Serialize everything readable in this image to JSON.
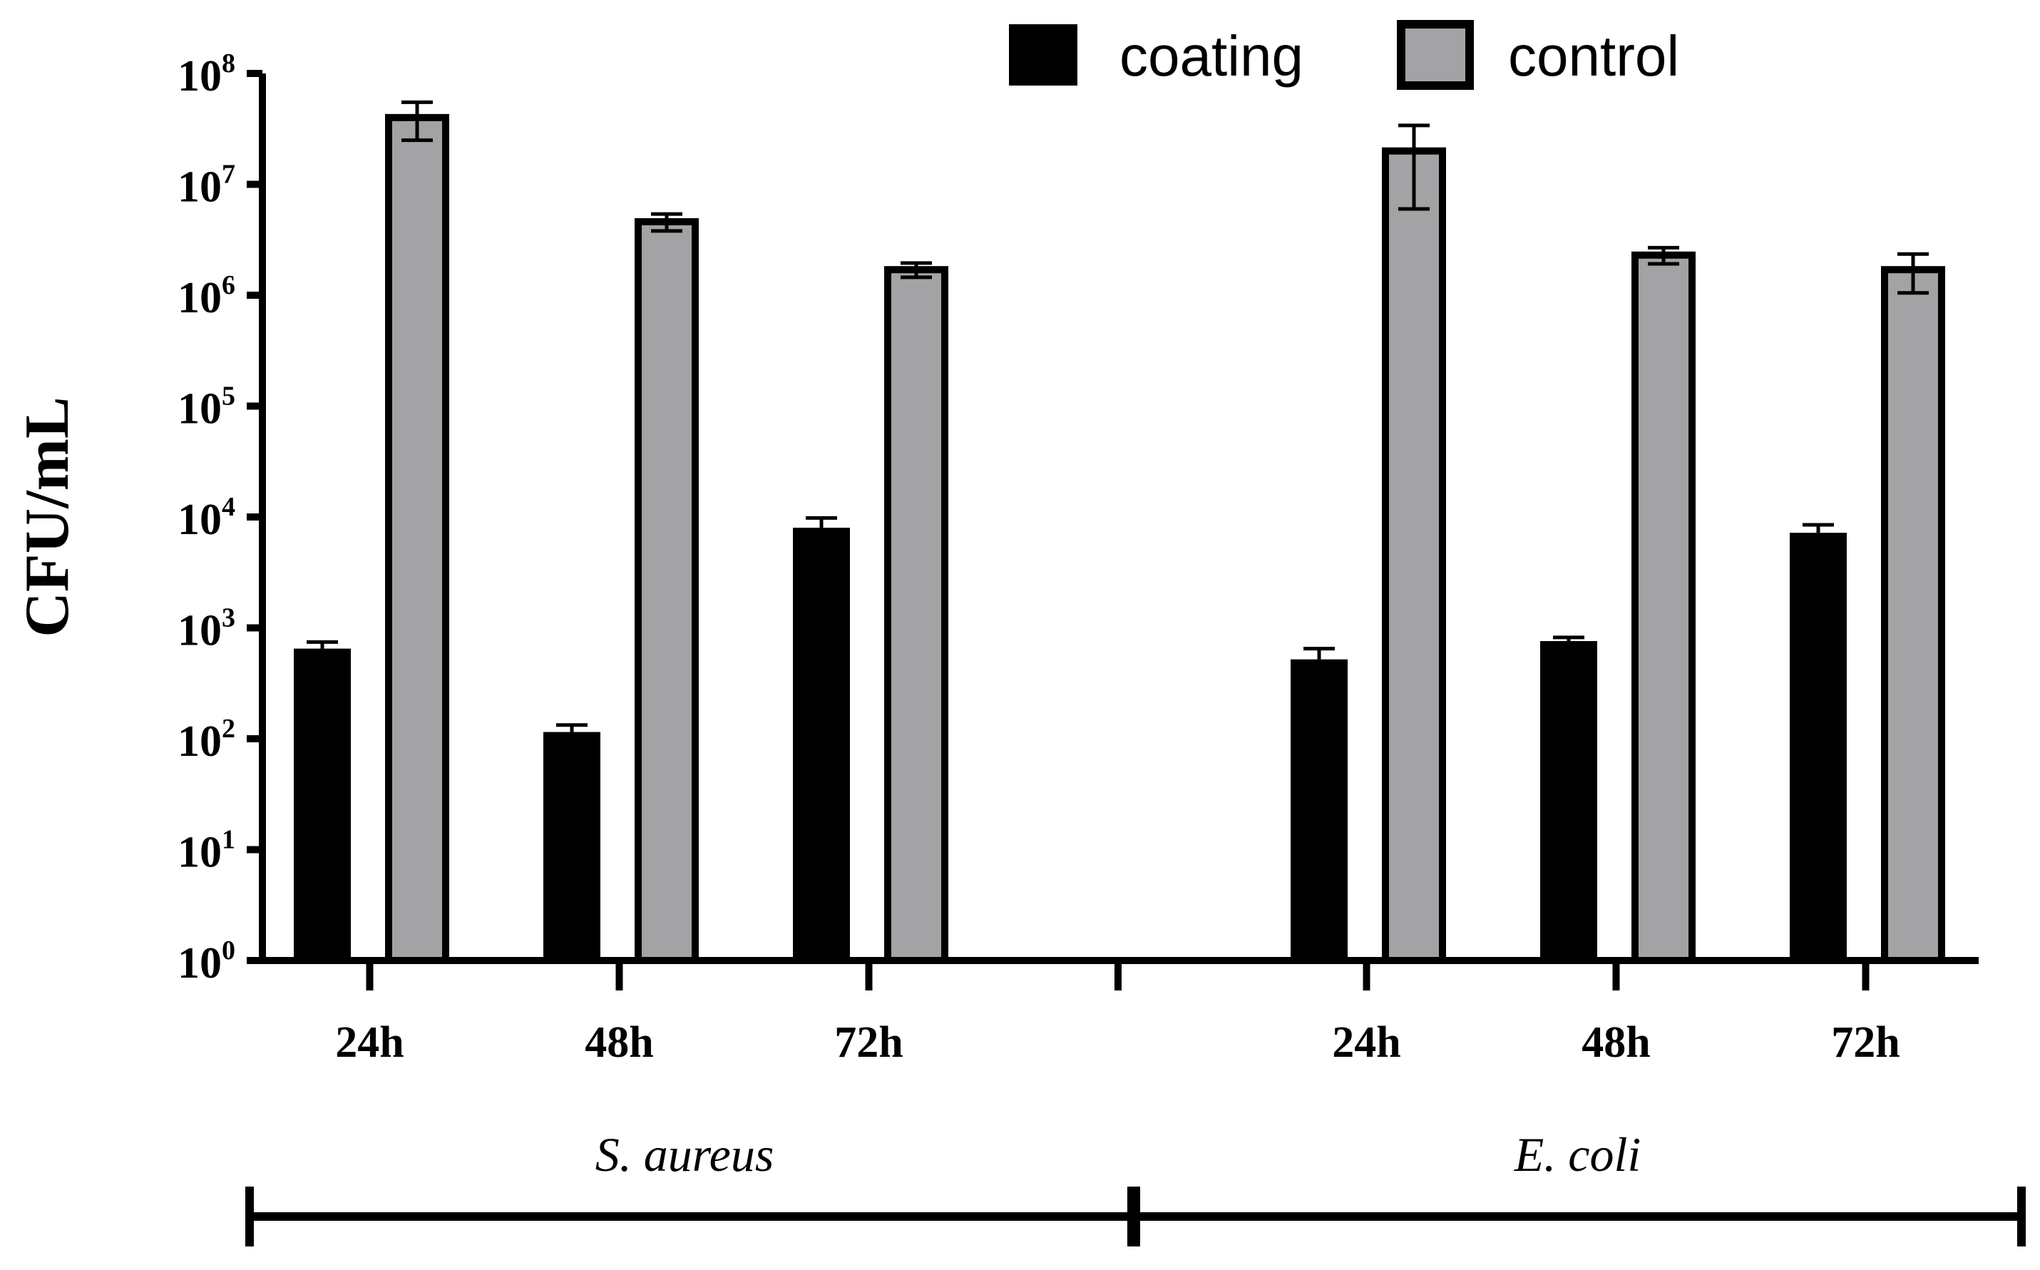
{
  "chart_data": {
    "type": "bar",
    "yscale": "log",
    "ylabel": "CFU/mL",
    "ylim": [
      1,
      100000000
    ],
    "yticks": [
      {
        "value": 1,
        "base": "10",
        "exp": "0"
      },
      {
        "value": 10,
        "base": "10",
        "exp": "1"
      },
      {
        "value": 100,
        "base": "10",
        "exp": "2"
      },
      {
        "value": 1000,
        "base": "10",
        "exp": "3"
      },
      {
        "value": 10000,
        "base": "10",
        "exp": "4"
      },
      {
        "value": 100000,
        "base": "10",
        "exp": "5"
      },
      {
        "value": 1000000,
        "base": "10",
        "exp": "6"
      },
      {
        "value": 10000000,
        "base": "10",
        "exp": "7"
      },
      {
        "value": 100000000,
        "base": "10",
        "exp": "8"
      }
    ],
    "legend": [
      {
        "name": "coating",
        "color": "#000000"
      },
      {
        "name": "control",
        "color": "#a3a3a5"
      }
    ],
    "groups": [
      {
        "label": "S. aureus",
        "categories": [
          "24h",
          "48h",
          "72h"
        ],
        "series": [
          {
            "name": "coating",
            "values": [
              650,
              115,
              8000
            ],
            "errors": [
              95,
              18,
              1800
            ]
          },
          {
            "name": "control",
            "values": [
              40000000,
              4600000,
              1700000
            ],
            "errors": [
              15000000,
              800000,
              250000
            ]
          }
        ]
      },
      {
        "label": "E. coli",
        "categories": [
          "24h",
          "48h",
          "72h"
        ],
        "series": [
          {
            "name": "coating",
            "values": [
              520,
              760,
              7200
            ],
            "errors": [
              130,
              60,
              1300
            ]
          },
          {
            "name": "control",
            "values": [
              20000000,
              2300000,
              1700000
            ],
            "errors": [
              14000000,
              380000,
              650000
            ]
          }
        ]
      }
    ]
  }
}
